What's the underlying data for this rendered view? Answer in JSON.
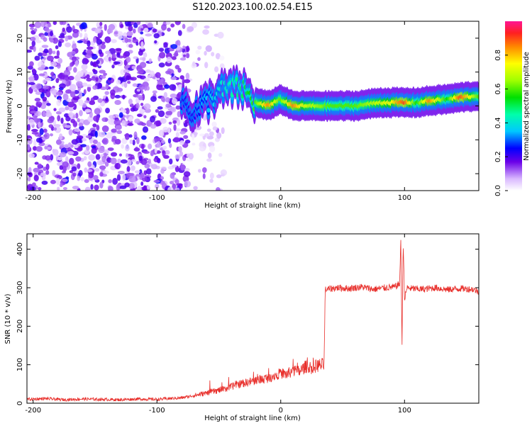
{
  "title": "S120.2023.100.02.54.E15",
  "chart_data": [
    {
      "type": "heatmap",
      "title": "S120.2023.100.02.54.E15",
      "xlabel": "Height of straight line (km)",
      "ylabel": "Frequency (Hz)",
      "xlim": [
        -205,
        160
      ],
      "ylim": [
        -25,
        25
      ],
      "x_ticks": [
        "-200",
        "-100",
        "0",
        "100"
      ],
      "x_tick_values": [
        -200,
        -100,
        0,
        100
      ],
      "y_ticks": [
        "20",
        "10",
        "0",
        "-10",
        "-20"
      ],
      "y_tick_values": [
        20,
        10,
        0,
        -10,
        -20
      ],
      "colorbar": {
        "label": "Normalized spectral amplitude",
        "ticks": [
          "0.0",
          "0.2",
          "0.4",
          "0.6",
          "0.8"
        ],
        "tick_values": [
          0.0,
          0.2,
          0.4,
          0.6,
          0.8
        ],
        "range": [
          0,
          1
        ],
        "colormap": "rainbow"
      },
      "noise_region": {
        "x_range": [
          -205,
          -75
        ],
        "freq_range": [
          -25,
          25
        ],
        "amplitude": [
          0.1,
          0.3
        ]
      },
      "ridge": [
        {
          "x": -80,
          "freq": 2,
          "amplitude": 0.3
        },
        {
          "x": -70,
          "freq": -2,
          "amplitude": 0.3
        },
        {
          "x": -60,
          "freq": 1,
          "amplitude": 0.35
        },
        {
          "x": -50,
          "freq": 4,
          "amplitude": 0.4
        },
        {
          "x": -40,
          "freq": 5,
          "amplitude": 0.45
        },
        {
          "x": -30,
          "freq": 5,
          "amplitude": 0.5
        },
        {
          "x": -20,
          "freq": 1,
          "amplitude": 0.6
        },
        {
          "x": -10,
          "freq": 0,
          "amplitude": 0.85
        },
        {
          "x": 0,
          "freq": 2,
          "amplitude": 0.6
        },
        {
          "x": 10,
          "freq": 0,
          "amplitude": 0.85
        },
        {
          "x": 20,
          "freq": 0,
          "amplitude": 0.7
        },
        {
          "x": 40,
          "freq": 0,
          "amplitude": 0.6
        },
        {
          "x": 60,
          "freq": 0,
          "amplitude": 0.6
        },
        {
          "x": 80,
          "freq": 1,
          "amplitude": 0.7
        },
        {
          "x": 90,
          "freq": 1,
          "amplitude": 0.75
        },
        {
          "x": 100,
          "freq": 1,
          "amplitude": 0.9
        },
        {
          "x": 110,
          "freq": 1,
          "amplitude": 0.55
        },
        {
          "x": 120,
          "freq": 1.5,
          "amplitude": 0.85
        },
        {
          "x": 135,
          "freq": 2,
          "amplitude": 0.55
        },
        {
          "x": 145,
          "freq": 2.5,
          "amplitude": 0.9
        },
        {
          "x": 160,
          "freq": 3,
          "amplitude": 0.6
        }
      ]
    },
    {
      "type": "line",
      "xlabel": "Height of straight line (km)",
      "ylabel": "SNR (10 * v/v)",
      "xlim": [
        -205,
        160
      ],
      "ylim": [
        0,
        440
      ],
      "x_ticks": [
        "-200",
        "-100",
        "0",
        "100"
      ],
      "x_tick_values": [
        -200,
        -100,
        0,
        100
      ],
      "y_ticks": [
        "0",
        "100",
        "200",
        "300",
        "400"
      ],
      "y_tick_values": [
        0,
        100,
        200,
        300,
        400
      ],
      "color": "#e8302c",
      "series": [
        {
          "x": [
            -205,
            -190,
            -175,
            -160,
            -145,
            -130,
            -115,
            -100,
            -90,
            -80,
            -70,
            -62,
            -55,
            -48,
            -42,
            -36,
            -30,
            -25,
            -20,
            -15,
            -10,
            -5,
            0,
            5,
            10,
            15,
            20,
            25,
            30,
            35,
            35.5,
            36,
            45,
            55,
            65,
            75,
            85,
            92,
            96,
            97,
            98,
            98.5,
            99,
            100,
            102,
            105,
            115,
            125,
            135,
            145,
            155,
            160,
            160
          ],
          "y": [
            10,
            12,
            9,
            11,
            10,
            9,
            11,
            10,
            12,
            14,
            20,
            25,
            30,
            35,
            40,
            48,
            52,
            55,
            60,
            62,
            66,
            72,
            78,
            75,
            85,
            82,
            95,
            92,
            98,
            100,
            200,
            295,
            300,
            298,
            302,
            296,
            300,
            302,
            310,
            420,
            150,
            330,
            410,
            270,
            300,
            298,
            296,
            300,
            295,
            298,
            296,
            290,
            180
          ]
        }
      ]
    }
  ]
}
